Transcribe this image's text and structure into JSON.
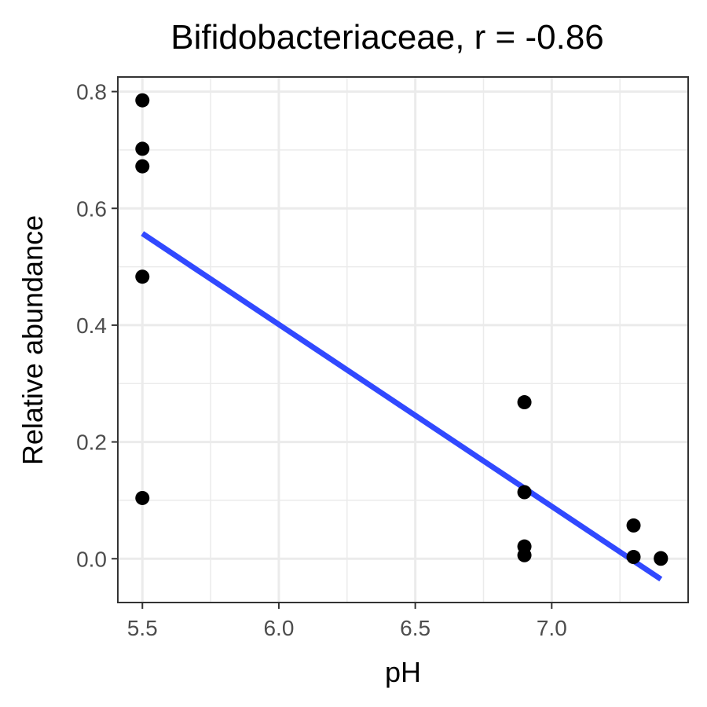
{
  "chart_data": {
    "type": "scatter",
    "title": "Bifidobacteriaceae, r = -0.86",
    "xlabel": "pH",
    "ylabel": "Relative abundance",
    "xlim": [
      5.41,
      7.5
    ],
    "ylim": [
      -0.075,
      0.825
    ],
    "x_ticks": [
      5.5,
      6.0,
      6.5,
      7.0
    ],
    "x_tick_labels": [
      "5.5",
      "6.0",
      "6.5",
      "7.0"
    ],
    "y_ticks": [
      0.0,
      0.2,
      0.4,
      0.6,
      0.8
    ],
    "y_tick_labels": [
      "0.0",
      "0.2",
      "0.4",
      "0.6",
      "0.8"
    ],
    "grid": true,
    "points": {
      "color": "#000000",
      "x": [
        5.5,
        5.5,
        5.5,
        5.5,
        5.5,
        6.9,
        6.9,
        6.9,
        6.9,
        7.3,
        7.3,
        7.4,
        7.4
      ],
      "y": [
        0.785,
        0.702,
        0.672,
        0.483,
        0.104,
        0.268,
        0.114,
        0.021,
        0.006,
        0.057,
        0.003,
        0.001,
        0.0
      ]
    },
    "trend_line": {
      "color": "#3149ff",
      "x": [
        5.5,
        7.4
      ],
      "y": [
        0.557,
        -0.035
      ]
    }
  }
}
